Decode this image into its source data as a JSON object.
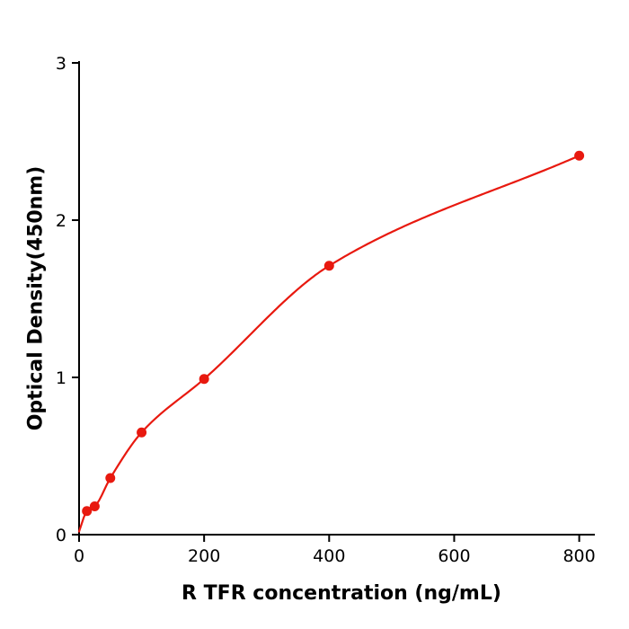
{
  "figure": {
    "background": "#ffffff",
    "axis_color": "#000000",
    "accent_color": "#e8190f"
  },
  "chart_data": {
    "type": "scatter",
    "title": "",
    "xlabel": "R  TFR concentration (ng/mL)",
    "ylabel": "Optical Density(450nm)",
    "x": [
      12.5,
      25,
      50,
      100,
      200,
      400,
      800
    ],
    "y": [
      0.15,
      0.18,
      0.36,
      0.65,
      0.99,
      1.71,
      2.41
    ],
    "curve_start": [
      0,
      0.02
    ],
    "curve_style": "smooth saturating fit through points",
    "xticks": [
      0,
      200,
      400,
      600,
      800
    ],
    "yticks": [
      0,
      1,
      2,
      3
    ],
    "xlim": [
      0,
      825
    ],
    "ylim": [
      0,
      3
    ],
    "grid": false,
    "legend": false,
    "marker_color": "#e8190f",
    "line_color": "#e8190f"
  }
}
